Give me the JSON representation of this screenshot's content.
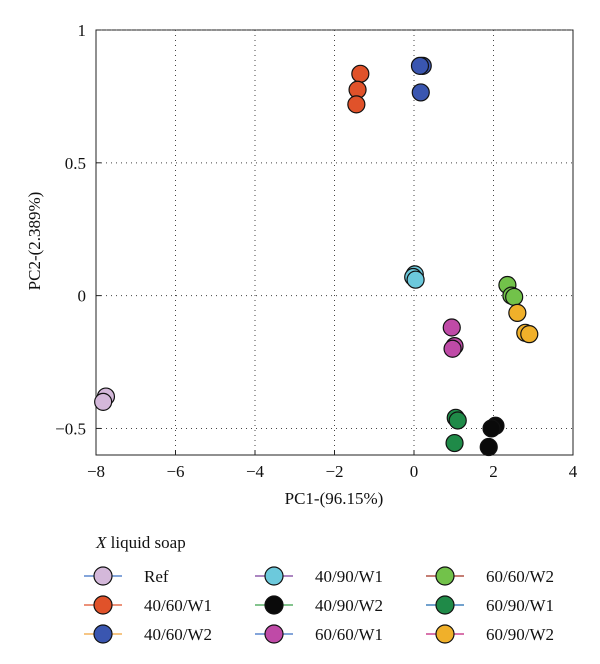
{
  "chart_data": {
    "type": "scatter",
    "xlabel": "PC1-(96.15%)",
    "ylabel": "PC2-(2.389%)",
    "xlim": [
      -8,
      4
    ],
    "ylim": [
      -0.6,
      1
    ],
    "xticks": [
      -8,
      -6,
      -4,
      -2,
      0,
      2,
      4
    ],
    "yticks": [
      -0.5,
      0,
      0.5,
      1
    ],
    "xtick_labels": [
      "−8",
      "−6",
      "−4",
      "−2",
      "0",
      "2",
      "4"
    ],
    "ytick_labels": [
      "−0.5",
      "0",
      "0.5",
      "1"
    ],
    "grid": true,
    "legend": {
      "title_italic": "X",
      "title_rest": " liquid soap",
      "placement": "bottom",
      "columns": 3
    },
    "series": [
      {
        "name": "Ref",
        "color": "#d4b8da",
        "line_color": "#3b6fc4",
        "points": [
          [
            -7.75,
            -0.38
          ],
          [
            -7.82,
            -0.4
          ]
        ]
      },
      {
        "name": "40/60/W1",
        "color": "#e0522a",
        "line_color": "#e0522a",
        "points": [
          [
            -1.35,
            0.835
          ],
          [
            -1.42,
            0.775
          ],
          [
            -1.45,
            0.72
          ]
        ]
      },
      {
        "name": "40/60/W2",
        "color": "#3a56b0",
        "line_color": "#f0a43c",
        "points": [
          [
            0.22,
            0.865
          ],
          [
            0.15,
            0.865
          ],
          [
            0.17,
            0.765
          ]
        ]
      },
      {
        "name": "40/90/W1",
        "color": "#6cc9dc",
        "line_color": "#7a3e9c",
        "points": [
          [
            0.02,
            0.08
          ],
          [
            -0.02,
            0.07
          ],
          [
            0.04,
            0.06
          ]
        ]
      },
      {
        "name": "40/90/W2",
        "color": "#0a0a0a",
        "line_color": "#3aa04a",
        "points": [
          [
            2.05,
            -0.49
          ],
          [
            1.95,
            -0.5
          ],
          [
            1.88,
            -0.57
          ]
        ]
      },
      {
        "name": "60/60/W1",
        "color": "#bf4aa7",
        "line_color": "#3b6fc4",
        "points": [
          [
            0.95,
            -0.12
          ],
          [
            1.02,
            -0.19
          ],
          [
            0.97,
            -0.2
          ]
        ]
      },
      {
        "name": "60/60/W2",
        "color": "#72c24a",
        "line_color": "#a23020",
        "points": [
          [
            2.35,
            0.04
          ],
          [
            2.45,
            0.0
          ],
          [
            2.52,
            -0.005
          ]
        ]
      },
      {
        "name": "60/90/W1",
        "color": "#1f8a48",
        "line_color": "#1f6ab0",
        "points": [
          [
            1.05,
            -0.46
          ],
          [
            1.1,
            -0.47
          ],
          [
            1.02,
            -0.555
          ]
        ]
      },
      {
        "name": "60/90/W2",
        "color": "#f0b02a",
        "line_color": "#c2207a",
        "points": [
          [
            2.6,
            -0.065
          ],
          [
            2.8,
            -0.14
          ],
          [
            2.9,
            -0.145
          ]
        ]
      }
    ]
  }
}
